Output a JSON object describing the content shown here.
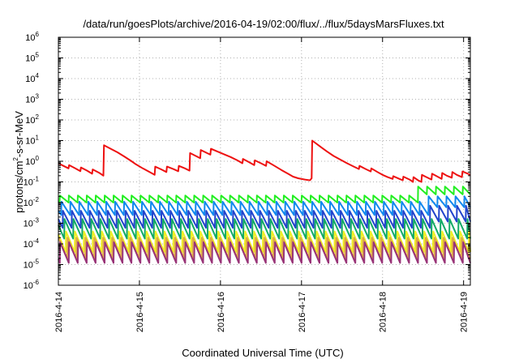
{
  "chart_data": {
    "type": "line",
    "title": "/data/run/goesPlots/archive/2016-04-19/02:00/flux/../flux/5daysMarsFluxes.txt",
    "xlabel": "Coordinated Universal Time (UTC)",
    "ylabel": {
      "base": "protons/cm",
      "sup": "2",
      "rest": "-s-sr-MeV"
    },
    "x_scale": "date",
    "xlim": [
      "2016-04-14T00:00",
      "2016-04-19T02:00"
    ],
    "x_ticks": [
      "2016-4-14",
      "2016-4-15",
      "2016-4-16",
      "2016-4-17",
      "2016-4-18",
      "2016-4-19"
    ],
    "y_scale": "log",
    "ylim": [
      1e-06,
      1000000.0
    ],
    "y_ticks": [
      {
        "base": "10",
        "exp": "-6"
      },
      {
        "base": "10",
        "exp": "-5"
      },
      {
        "base": "10",
        "exp": "-4"
      },
      {
        "base": "10",
        "exp": "-3"
      },
      {
        "base": "10",
        "exp": "-2"
      },
      {
        "base": "10",
        "exp": "-1"
      },
      {
        "base": "10",
        "exp": "0"
      },
      {
        "base": "10",
        "exp": "1"
      },
      {
        "base": "10",
        "exp": "2"
      },
      {
        "base": "10",
        "exp": "3"
      },
      {
        "base": "10",
        "exp": "4"
      },
      {
        "base": "10",
        "exp": "5"
      },
      {
        "base": "10",
        "exp": "6"
      }
    ],
    "grid": true,
    "legend": "none",
    "series": [
      {
        "color": "#ee1111",
        "points": [
          [
            "2016-04-14T00:00",
            0.8
          ],
          [
            "2016-04-14T01:30",
            0.6
          ],
          [
            "2016-04-14T03:00",
            0.45
          ],
          [
            "2016-04-14T03:10",
            0.65
          ],
          [
            "2016-04-14T05:00",
            0.45
          ],
          [
            "2016-04-14T06:30",
            0.33
          ],
          [
            "2016-04-14T06:40",
            0.5
          ],
          [
            "2016-04-14T08:30",
            0.35
          ],
          [
            "2016-04-14T10:00",
            0.25
          ],
          [
            "2016-04-14T10:10",
            0.4
          ],
          [
            "2016-04-14T12:00",
            0.28
          ],
          [
            "2016-04-14T13:20",
            0.2
          ],
          [
            "2016-04-14T13:30",
            6.0
          ],
          [
            "2016-04-14T15:30",
            4.0
          ],
          [
            "2016-04-14T17:30",
            2.7
          ],
          [
            "2016-04-14T19:30",
            1.7
          ],
          [
            "2016-04-14T21:30",
            1.05
          ],
          [
            "2016-04-14T23:00",
            0.7
          ],
          [
            "2016-04-15T01:00",
            0.45
          ],
          [
            "2016-04-15T03:00",
            0.3
          ],
          [
            "2016-04-15T04:30",
            0.22
          ],
          [
            "2016-04-15T04:40",
            0.55
          ],
          [
            "2016-04-15T06:30",
            0.4
          ],
          [
            "2016-04-15T08:00",
            0.3
          ],
          [
            "2016-04-15T08:10",
            0.55
          ],
          [
            "2016-04-15T10:00",
            0.42
          ],
          [
            "2016-04-15T11:30",
            0.33
          ],
          [
            "2016-04-15T11:40",
            0.6
          ],
          [
            "2016-04-15T13:30",
            0.45
          ],
          [
            "2016-04-15T14:50",
            0.35
          ],
          [
            "2016-04-15T15:00",
            2.5
          ],
          [
            "2016-04-15T17:00",
            1.7
          ],
          [
            "2016-04-15T18:00",
            1.4
          ],
          [
            "2016-04-15T18:10",
            3.5
          ],
          [
            "2016-04-15T20:00",
            2.5
          ],
          [
            "2016-04-15T21:00",
            2.1
          ],
          [
            "2016-04-15T21:10",
            4.0
          ],
          [
            "2016-04-15T23:00",
            3.0
          ],
          [
            "2016-04-16T01:00",
            2.2
          ],
          [
            "2016-04-16T03:00",
            1.6
          ],
          [
            "2016-04-16T05:00",
            1.1
          ],
          [
            "2016-04-16T06:30",
            0.8
          ],
          [
            "2016-04-16T06:40",
            1.3
          ],
          [
            "2016-04-16T08:30",
            0.9
          ],
          [
            "2016-04-16T10:00",
            0.65
          ],
          [
            "2016-04-16T10:10",
            1.1
          ],
          [
            "2016-04-16T12:00",
            0.8
          ],
          [
            "2016-04-16T13:30",
            0.6
          ],
          [
            "2016-04-16T13:40",
            1.0
          ],
          [
            "2016-04-16T16:00",
            0.6
          ],
          [
            "2016-04-16T18:00",
            0.38
          ],
          [
            "2016-04-16T20:00",
            0.25
          ],
          [
            "2016-04-16T21:30",
            0.18
          ],
          [
            "2016-04-16T23:00",
            0.15
          ],
          [
            "2016-04-17T01:00",
            0.13
          ],
          [
            "2016-04-17T02:30",
            0.12
          ],
          [
            "2016-04-17T03:00",
            0.15
          ],
          [
            "2016-04-17T03:10",
            10.0
          ],
          [
            "2016-04-17T05:00",
            6.0
          ],
          [
            "2016-04-17T06:00",
            4.5
          ],
          [
            "2016-04-17T07:30",
            3.0
          ],
          [
            "2016-04-17T09:30",
            1.8
          ],
          [
            "2016-04-17T11:30",
            1.2
          ],
          [
            "2016-04-17T13:30",
            0.8
          ],
          [
            "2016-04-17T15:30",
            0.55
          ],
          [
            "2016-04-17T17:00",
            0.42
          ],
          [
            "2016-04-17T17:10",
            0.6
          ],
          [
            "2016-04-17T19:00",
            0.42
          ],
          [
            "2016-04-17T20:30",
            0.32
          ],
          [
            "2016-04-17T20:40",
            0.45
          ],
          [
            "2016-04-17T22:30",
            0.3
          ],
          [
            "2016-04-18T00:00",
            0.22
          ],
          [
            "2016-04-18T01:30",
            0.17
          ],
          [
            "2016-04-18T03:00",
            0.14
          ],
          [
            "2016-04-18T03:10",
            0.19
          ],
          [
            "2016-04-18T05:00",
            0.14
          ],
          [
            "2016-04-18T06:00",
            0.12
          ],
          [
            "2016-04-18T06:10",
            0.18
          ],
          [
            "2016-04-18T08:00",
            0.13
          ],
          [
            "2016-04-18T09:00",
            0.1
          ],
          [
            "2016-04-18T09:10",
            0.17
          ],
          [
            "2016-04-18T10:30",
            0.12
          ],
          [
            "2016-04-18T11:30",
            0.1
          ],
          [
            "2016-04-18T11:40",
            0.22
          ],
          [
            "2016-04-18T13:00",
            0.17
          ],
          [
            "2016-04-18T14:30",
            0.13
          ],
          [
            "2016-04-18T14:40",
            0.25
          ],
          [
            "2016-04-18T16:00",
            0.19
          ],
          [
            "2016-04-18T17:30",
            0.14
          ],
          [
            "2016-04-18T17:40",
            0.27
          ],
          [
            "2016-04-18T19:00",
            0.2
          ],
          [
            "2016-04-18T20:30",
            0.16
          ],
          [
            "2016-04-18T20:40",
            0.3
          ],
          [
            "2016-04-18T22:00",
            0.22
          ],
          [
            "2016-04-18T23:30",
            0.17
          ],
          [
            "2016-04-18T23:40",
            0.32
          ],
          [
            "2016-04-19T01:00",
            0.26
          ],
          [
            "2016-04-19T02:00",
            0.22
          ]
        ]
      },
      {
        "color": "#22ee22",
        "sawtooth": {
          "count": 46,
          "peak": 0.022,
          "trough": 0.01,
          "late_from": "2016-04-18T10:00",
          "late_peak": 0.06,
          "late_trough": 0.025
        }
      },
      {
        "color": "#1188ee",
        "sawtooth": {
          "count": 46,
          "peak": 0.011,
          "trough": 0.0025,
          "late_from": "2016-04-18T12:00",
          "late_peak": 0.02,
          "late_trough": 0.006
        }
      },
      {
        "color": "#2244cc",
        "sawtooth": {
          "count": 46,
          "peak": 0.004,
          "trough": 0.0006,
          "late_from": "2016-04-18T12:00",
          "late_peak": 0.007,
          "late_trough": 0.0012
        }
      },
      {
        "color": "#11aa66",
        "sawtooth": {
          "count": 46,
          "peak": 0.0016,
          "trough": 0.00018
        }
      },
      {
        "color": "#eeee22",
        "sawtooth": {
          "count": 46,
          "peak": 0.0004,
          "trough": 4e-05
        }
      },
      {
        "color": "#ddaa44",
        "sawtooth": {
          "count": 46,
          "peak": 0.0002,
          "trough": 2e-05
        }
      },
      {
        "color": "#993377",
        "sawtooth": {
          "count": 46,
          "peak": 0.00012,
          "trough": 1.2e-05
        }
      }
    ]
  }
}
